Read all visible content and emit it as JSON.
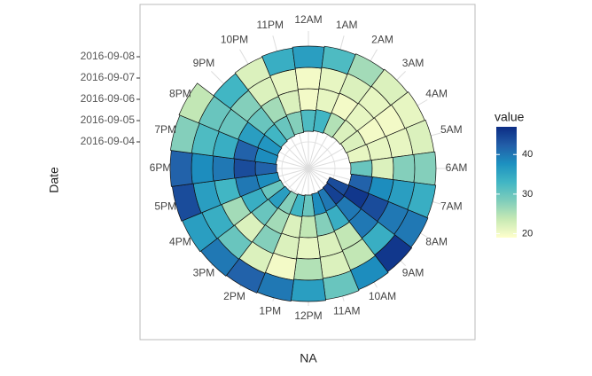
{
  "chart_data": {
    "type": "polar_heatmap",
    "xlabel": "NA",
    "ylabel": "Date",
    "legend_title": "value",
    "hours": [
      "12AM",
      "1AM",
      "2AM",
      "3AM",
      "4AM",
      "5AM",
      "6AM",
      "7AM",
      "8AM",
      "9AM",
      "10AM",
      "11AM",
      "12PM",
      "1PM",
      "2PM",
      "3PM",
      "4PM",
      "5PM",
      "6PM",
      "7PM",
      "8PM",
      "9PM",
      "10PM",
      "11PM"
    ],
    "dates": [
      "2016-09-04",
      "2016-09-05",
      "2016-09-06",
      "2016-09-07",
      "2016-09-08"
    ],
    "values": [
      [
        null,
        null,
        null,
        null,
        null,
        null,
        null,
        null,
        44,
        45,
        40,
        38,
        30,
        33,
        28,
        36,
        30,
        38,
        42,
        38,
        37,
        33,
        30,
        28
      ],
      [
        32,
        33,
        25,
        22,
        22,
        21,
        30,
        42,
        46,
        40,
        34,
        28,
        24,
        22,
        26,
        30,
        34,
        40,
        44,
        42,
        36,
        30,
        26,
        22
      ],
      [
        20,
        21,
        20,
        21,
        20,
        21,
        22,
        38,
        44,
        40,
        24,
        22,
        21,
        22,
        28,
        22,
        26,
        33,
        40,
        34,
        30,
        28,
        22,
        21
      ],
      [
        20,
        21,
        22,
        21,
        20,
        21,
        28,
        36,
        40,
        34,
        24,
        22,
        25,
        20,
        22,
        30,
        34,
        36,
        38,
        32,
        30,
        33,
        22,
        34
      ],
      [
        36,
        32,
        26,
        22,
        21,
        22,
        28,
        34,
        40,
        46,
        38,
        30,
        36,
        40,
        42,
        40,
        36,
        44,
        42,
        28,
        24,
        null,
        null,
        null
      ]
    ],
    "colors": [
      "#ffffcc",
      "#c7e9b4",
      "#7fcdbb",
      "#41b6c4",
      "#1d91c0",
      "#225ea8",
      "#0c2c84"
    ],
    "clim": [
      19,
      47
    ],
    "cticks": [
      20,
      30,
      40
    ]
  }
}
